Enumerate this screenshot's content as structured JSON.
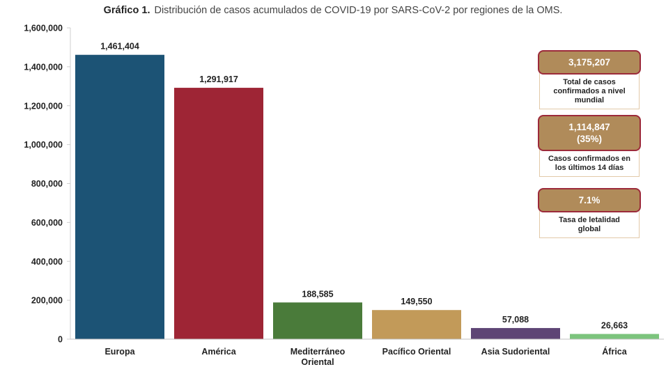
{
  "title": {
    "lead": "Gráfico 1.",
    "text": "Distribución de casos acumulados de COVID-19 por SARS-CoV-2 por regiones de la OMS."
  },
  "chart_data": {
    "type": "bar",
    "categories": [
      "Europa",
      "América",
      "Mediterráneo Oriental",
      "Pacífico Oriental",
      "Asia Sudoriental",
      "África"
    ],
    "category_lines": [
      [
        "Europa"
      ],
      [
        "América"
      ],
      [
        "Mediterráneo",
        "Oriental"
      ],
      [
        "Pacífico Oriental"
      ],
      [
        "Asia Sudoriental"
      ],
      [
        "África"
      ]
    ],
    "values": [
      1461404,
      1291917,
      188585,
      149550,
      57088,
      26663
    ],
    "value_labels": [
      "1,461,404",
      "1,291,917",
      "188,585",
      "149,550",
      "57,088",
      "26,663"
    ],
    "colors": [
      "#1c5375",
      "#9e2535",
      "#4a7b3a",
      "#c29a59",
      "#5e4575",
      "#7cc47d"
    ],
    "ylim": [
      0,
      1600000
    ],
    "yticks": [
      0,
      200000,
      400000,
      600000,
      800000,
      1000000,
      1200000,
      1400000,
      1600000
    ],
    "ytick_labels": [
      "0",
      "200,000",
      "400,000",
      "600,000",
      "800,000",
      "1,000,000",
      "1,200,000",
      "1,400,000",
      "1,600,000"
    ],
    "grid": false,
    "legend": "none"
  },
  "cards": [
    {
      "value": "3,175,207",
      "label": "Total de casos confirmados a nivel mundial"
    },
    {
      "value": "1,114,847 (35%)",
      "label": "Casos confirmados en los últimos 14 días"
    },
    {
      "value": "7.1%",
      "label": "Tasa de letalidad global"
    }
  ],
  "colors": {
    "card_fill": "#b08b5a",
    "card_border": "#9c2a3a"
  }
}
